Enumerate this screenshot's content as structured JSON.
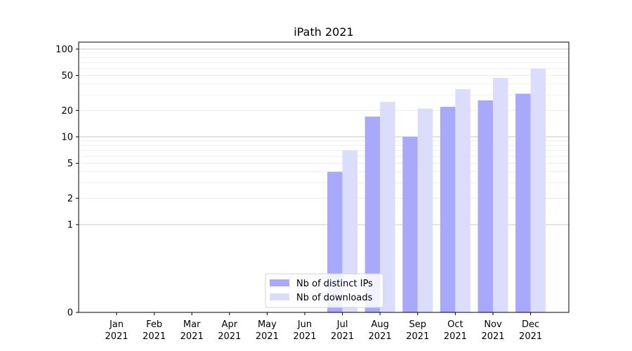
{
  "chart_data": {
    "type": "bar",
    "title": "iPath 2021",
    "xlabel": "",
    "ylabel": "",
    "yscale": "symlog",
    "ylim": [
      0,
      120
    ],
    "yticks": [
      0,
      1,
      2,
      5,
      10,
      20,
      50,
      100
    ],
    "categories": [
      "Jan\n2021",
      "Feb\n2021",
      "Mar\n2021",
      "Apr\n2021",
      "May\n2021",
      "Jun\n2021",
      "Jul\n2021",
      "Aug\n2021",
      "Sep\n2021",
      "Oct\n2021",
      "Nov\n2021",
      "Dec\n2021"
    ],
    "series": [
      {
        "name": "Nb of distinct IPs",
        "color": "#a8a8fc",
        "values": [
          0,
          0,
          0,
          0,
          0,
          0,
          4,
          17,
          10,
          22,
          26,
          31
        ]
      },
      {
        "name": "Nb of downloads",
        "color": "#dcdcfc",
        "values": [
          0,
          0,
          0,
          0,
          0,
          0,
          7,
          25,
          21,
          35,
          47,
          60
        ]
      }
    ],
    "grid": true,
    "legend_position": "lower center"
  }
}
